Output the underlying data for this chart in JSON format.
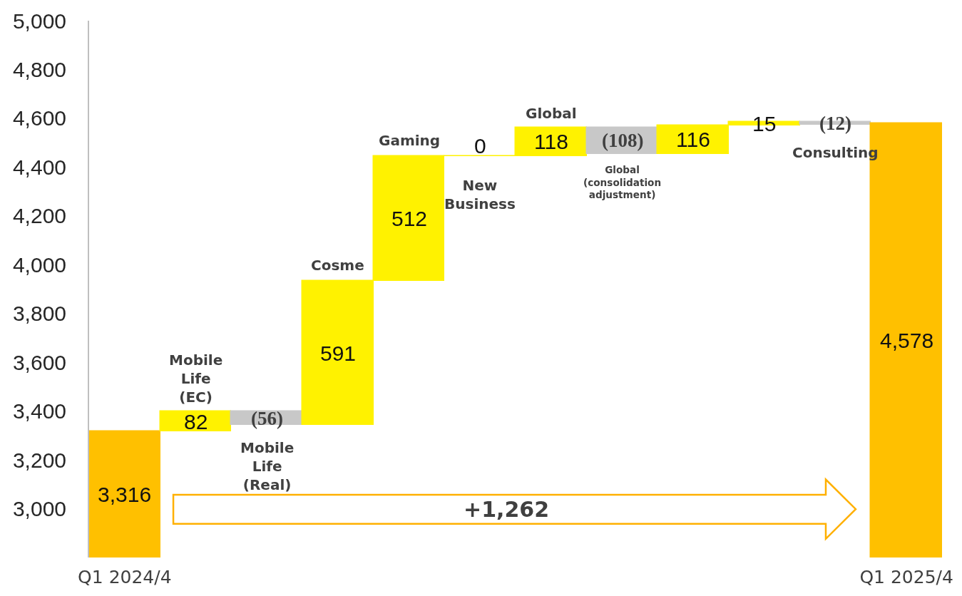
{
  "chart_data": {
    "type": "bar",
    "categories": [
      "Q1 2024/4",
      "Mobile Life (EC)",
      "Mobile Life (Real)",
      "Cosme",
      "Gaming",
      "New Business",
      "Global",
      "Global (consolidation adjustment)",
      null,
      null,
      "Consulting",
      "Q1 2025/4"
    ],
    "values": [
      3316,
      82,
      -56,
      591,
      512,
      0,
      118,
      -108,
      116,
      15,
      -12,
      4578
    ],
    "base": [
      null,
      3316,
      3398,
      3342,
      3933,
      4445,
      4445,
      4563,
      4455,
      4571,
      4586,
      null
    ],
    "colors": [
      "#ffc000",
      "#fff200",
      "#c8c8c8",
      "#fff200",
      "#fff200",
      "#fff200",
      "#fff200",
      "#c8c8c8",
      "#fff200",
      "#fff200",
      "#c8c8c8",
      "#ffc000"
    ],
    "value_labels": [
      "3,316",
      "82",
      "(56)",
      "591",
      "512",
      "0",
      "118",
      "(108)",
      "116",
      "15",
      "(12)",
      "4,578"
    ],
    "ylim": [
      2800,
      5000
    ],
    "yticks": [
      {
        "value": 3000,
        "label": "3,000"
      },
      {
        "value": 3200,
        "label": "3,200"
      },
      {
        "value": 3400,
        "label": "3,400"
      },
      {
        "value": 3600,
        "label": "3,600"
      },
      {
        "value": 3800,
        "label": "3,800"
      },
      {
        "value": 4000,
        "label": "4,000"
      },
      {
        "value": 4200,
        "label": "4,200"
      },
      {
        "value": 4400,
        "label": "4,400"
      },
      {
        "value": 4600,
        "label": "4,600"
      },
      {
        "value": 4800,
        "label": "4,800"
      },
      {
        "value": 5000,
        "label": "5,000"
      }
    ],
    "annotations": [
      "+1,262"
    ]
  }
}
